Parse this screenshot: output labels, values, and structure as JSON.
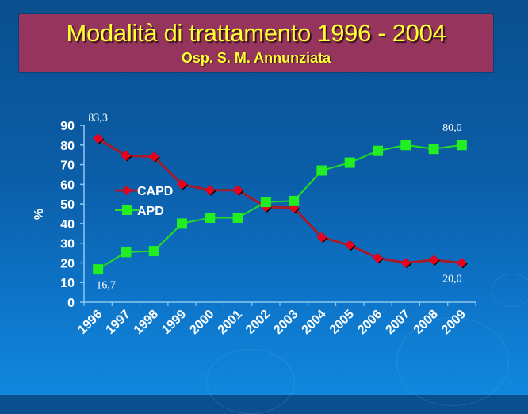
{
  "slide": {
    "title": "Modalità di trattamento 1996 - 2004",
    "subtitle": "Osp. S. M. Annunziata",
    "colors": {
      "title_bg": "#95355e",
      "title_text": "#ffff33",
      "capd": "#e8001c",
      "capd_line": "#a51b2b",
      "apd": "#22ee22"
    }
  },
  "chart_data": {
    "type": "line",
    "title": "Modalità di trattamento 1996 - 2004",
    "subtitle": "Osp. S. M. Annunziata",
    "xlabel": "",
    "ylabel": "%",
    "ylim": [
      0,
      90
    ],
    "yticks": [
      0,
      10,
      20,
      30,
      40,
      50,
      60,
      70,
      80,
      90
    ],
    "grid": false,
    "legend_position": "inside-left",
    "categories": [
      "1996",
      "1997",
      "1998",
      "1999",
      "2000",
      "2001",
      "2002",
      "2003",
      "2004",
      "2005",
      "2006",
      "2007",
      "2008",
      "2009"
    ],
    "series": [
      {
        "name": "CAPD",
        "marker": "diamond",
        "color": "#e8001c",
        "values": [
          83.3,
          74.5,
          74,
          60,
          57,
          57,
          48.5,
          48,
          33,
          29,
          22.5,
          20,
          21.5,
          20.0
        ]
      },
      {
        "name": "APD",
        "marker": "square",
        "color": "#22ee22",
        "values": [
          16.7,
          25.5,
          26,
          40,
          43,
          43,
          51,
          51.5,
          67,
          71,
          77,
          80,
          78,
          80.0
        ]
      }
    ],
    "annotations": [
      {
        "text": "83,3",
        "series": "CAPD",
        "category": "1996"
      },
      {
        "text": "16,7",
        "series": "APD",
        "category": "1996"
      },
      {
        "text": "80,0",
        "series": "APD",
        "category": "2009"
      },
      {
        "text": "20,0",
        "series": "CAPD",
        "category": "2009"
      }
    ]
  }
}
